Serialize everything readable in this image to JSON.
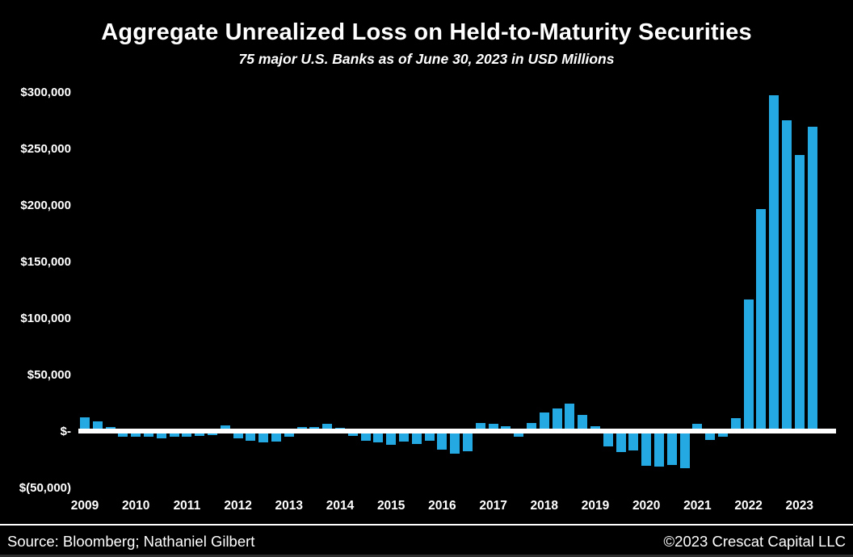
{
  "header": {
    "title": "Aggregate Unrealized Loss on Held-to-Maturity Securities",
    "subtitle": "75 major U.S. Banks as of June 30, 2023 in USD Millions"
  },
  "footer": {
    "source": "Source: Bloomberg; Nathaniel Gilbert",
    "copyright": "©2023 Crescat Capital LLC"
  },
  "colors": {
    "background": "#000000",
    "bar": "#25A9E2",
    "text": "#FFFFFF",
    "zero_line": "#FFFFFF"
  },
  "chart_data": {
    "type": "bar",
    "title": "Aggregate Unrealized Loss on Held-to-Maturity Securities",
    "subtitle": "75 major U.S. Banks as of June 30, 2023 in USD Millions",
    "unit": "USD Millions",
    "ylim": [
      -50000,
      300000
    ],
    "grid": false,
    "legend": false,
    "y_ticks": [
      {
        "label": "$300,000",
        "value": 300000
      },
      {
        "label": "$250,000",
        "value": 250000
      },
      {
        "label": "$200,000",
        "value": 200000
      },
      {
        "label": "$150,000",
        "value": 150000
      },
      {
        "label": "$100,000",
        "value": 100000
      },
      {
        "label": "$50,000",
        "value": 50000
      },
      {
        "label": "$-",
        "value": 0
      },
      {
        "label": "$(50,000)",
        "value": -50000
      }
    ],
    "year_labels": [
      "2009",
      "2010",
      "2011",
      "2012",
      "2013",
      "2014",
      "2015",
      "2016",
      "2017",
      "2018",
      "2019",
      "2020",
      "2021",
      "2022",
      "2023"
    ],
    "categories": [
      "2009 Q1",
      "2009 Q2",
      "2009 Q3",
      "2009 Q4",
      "2010 Q1",
      "2010 Q2",
      "2010 Q3",
      "2010 Q4",
      "2011 Q1",
      "2011 Q2",
      "2011 Q3",
      "2011 Q4",
      "2012 Q1",
      "2012 Q2",
      "2012 Q3",
      "2012 Q4",
      "2013 Q1",
      "2013 Q2",
      "2013 Q3",
      "2013 Q4",
      "2014 Q1",
      "2014 Q2",
      "2014 Q3",
      "2014 Q4",
      "2015 Q1",
      "2015 Q2",
      "2015 Q3",
      "2015 Q4",
      "2016 Q1",
      "2016 Q2",
      "2016 Q3",
      "2016 Q4",
      "2017 Q1",
      "2017 Q2",
      "2017 Q3",
      "2017 Q4",
      "2018 Q1",
      "2018 Q2",
      "2018 Q3",
      "2018 Q4",
      "2019 Q1",
      "2019 Q2",
      "2019 Q3",
      "2019 Q4",
      "2020 Q1",
      "2020 Q2",
      "2020 Q3",
      "2020 Q4",
      "2021 Q1",
      "2021 Q2",
      "2021 Q3",
      "2021 Q4",
      "2022 Q1",
      "2022 Q2",
      "2022 Q3",
      "2022 Q4",
      "2023 Q1",
      "2023 Q2"
    ],
    "values": [
      13000,
      9000,
      4500,
      -4000,
      -4500,
      -4500,
      -5500,
      -4500,
      -4500,
      -3500,
      -3000,
      6000,
      -6000,
      -7500,
      -9000,
      -8500,
      -4000,
      4500,
      4000,
      7000,
      3500,
      -3500,
      -7500,
      -9500,
      -11500,
      -8500,
      -10500,
      -8000,
      -16000,
      -19000,
      -17000,
      8000,
      7000,
      5000,
      -4000,
      8000,
      17000,
      21000,
      25000,
      15000,
      5000,
      -13000,
      -18000,
      -16500,
      -30000,
      -31000,
      -29000,
      -32000,
      7000,
      -7000,
      -4000,
      12000,
      117000,
      197000,
      298000,
      276000,
      245000,
      270000
    ]
  }
}
